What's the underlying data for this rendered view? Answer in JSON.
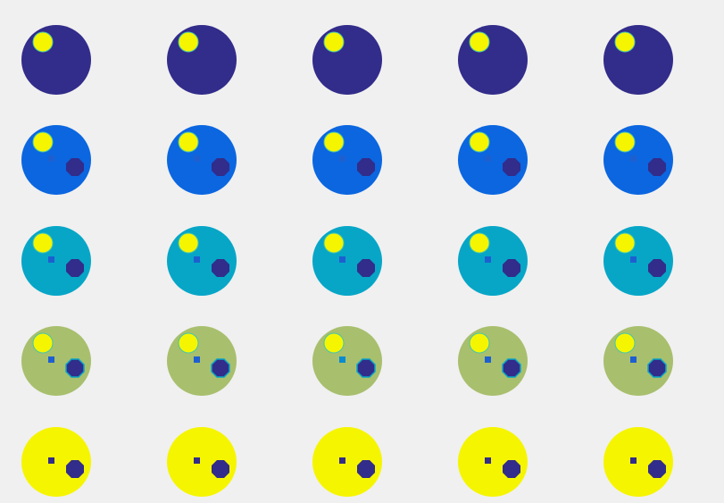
{
  "background": "#f0f0f0",
  "palette": {
    "dark_navy": "#322c8a",
    "royal_blue": "#0b66e0",
    "cyan": "#07a6c7",
    "olive_green": "#a8bf6e",
    "yellow": "#f6f500",
    "small_square_blue": "#1e5fd0",
    "small_square_cyan": "#0a8bd0",
    "highlight_yellow": "#f6f500"
  },
  "grid": {
    "rows": 5,
    "columns": 5,
    "row_fill": [
      "dark_navy",
      "royal_blue",
      "cyan",
      "olive_green",
      "yellow"
    ],
    "row_has_inner_features": [
      false,
      true,
      true,
      true,
      true
    ],
    "row_has_highlight": [
      true,
      true,
      true,
      true,
      false
    ]
  }
}
